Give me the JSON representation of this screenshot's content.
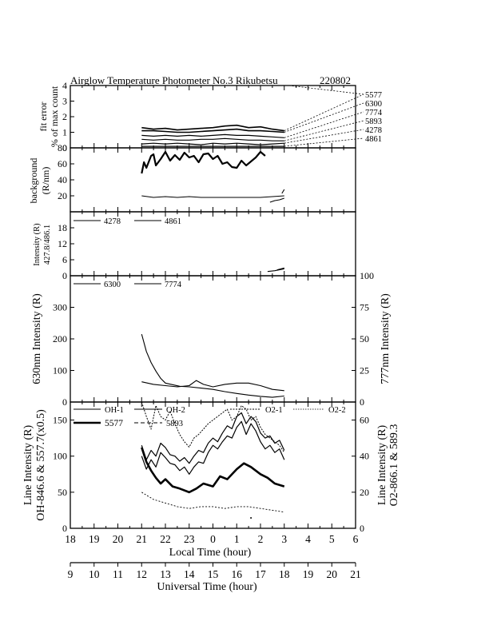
{
  "title": {
    "left": "Airglow Temperature Photometer No.3  Rikubetsu",
    "right": "220802"
  },
  "local_axis": {
    "label": "Local Time (hour)",
    "ticks": [
      "18",
      "19",
      "20",
      "21",
      "22",
      "23",
      "0",
      "1",
      "2",
      "3",
      "4",
      "5",
      "6"
    ]
  },
  "ut_axis": {
    "label": "Universal Time (hour)",
    "ticks": [
      "9",
      "10",
      "11",
      "12",
      "13",
      "14",
      "15",
      "16",
      "17",
      "18",
      "19",
      "20",
      "21"
    ]
  },
  "panel1": {
    "ylabel1": "fit error",
    "ylabel2": "% of max count",
    "yticks": [
      "0",
      "1",
      "2",
      "3",
      "4"
    ],
    "callouts": [
      "5577",
      "6300",
      "7774",
      "5893",
      "4278",
      "4861"
    ]
  },
  "panel2": {
    "ylabel1": "background",
    "ylabel2": "(R/nm)",
    "yticks": [
      "20",
      "40",
      "60",
      "80"
    ]
  },
  "panel3": {
    "ylabel1": "Intensity (R)",
    "ylabel2": "427.8/486.1",
    "yticks": [
      "0",
      "6",
      "12",
      "18"
    ],
    "legend": [
      "4278",
      "4861"
    ]
  },
  "panel4": {
    "ylabel_left": "630nm Intensity (R)",
    "ylabel_right": "777nm Intensity (R)",
    "yticks_left": [
      "0",
      "100",
      "200",
      "300"
    ],
    "yticks_right": [
      "0",
      "25",
      "50",
      "75",
      "100"
    ],
    "legend": [
      "6300",
      "7774"
    ]
  },
  "panel5": {
    "ylabel_left1": "Line Intensity (R)",
    "ylabel_left2": "OH-846.6 & 557.7(x0.5)",
    "ylabel_right1": "Line Intensity (R)",
    "ylabel_right2": "O2-866.1 & 589.3",
    "yticks_left": [
      "0",
      "50",
      "100",
      "150"
    ],
    "yticks_right": [
      "0",
      "20",
      "40",
      "60"
    ],
    "legend": [
      "OH-1",
      "OH-2",
      "O2-1",
      "O2-2",
      "5577",
      "5893"
    ]
  },
  "chart_data": [
    {
      "type": "line",
      "ylabel": "fit error % of max count",
      "xlim": [
        18,
        30
      ],
      "ylim": [
        0,
        4
      ],
      "x_units": "local time (hour)",
      "series": [
        {
          "name": "5577",
          "x": [
            21,
            21.5,
            22,
            22.5,
            23,
            23.5,
            24,
            24.5,
            25,
            25.5,
            26,
            26.5,
            27
          ],
          "values": [
            1.3,
            1.2,
            1.25,
            1.15,
            1.2,
            1.25,
            1.3,
            1.4,
            1.45,
            1.3,
            1.35,
            1.2,
            1.1
          ]
        },
        {
          "name": "6300",
          "x": [
            21,
            21.5,
            22,
            22.5,
            23,
            23.5,
            24,
            24.5,
            25,
            25.5,
            26,
            26.5,
            27
          ],
          "values": [
            1.1,
            1.1,
            1.05,
            1.0,
            1.0,
            1.05,
            1.1,
            1.15,
            1.2,
            1.1,
            1.1,
            1.05,
            1.0
          ]
        },
        {
          "name": "7774",
          "x": [
            21,
            21.5,
            22,
            22.5,
            23,
            23.5,
            24,
            24.5,
            25,
            25.5,
            26,
            26.5,
            27
          ],
          "values": [
            0.8,
            0.75,
            0.8,
            0.75,
            0.8,
            0.75,
            0.8,
            0.85,
            0.8,
            0.8,
            0.75,
            0.7,
            0.65
          ]
        },
        {
          "name": "5893",
          "x": [
            21,
            21.5,
            22,
            22.5,
            23,
            23.5,
            24,
            24.5,
            25,
            25.5,
            26,
            26.5,
            27
          ],
          "values": [
            0.55,
            0.5,
            0.55,
            0.5,
            0.5,
            0.55,
            0.55,
            0.6,
            0.55,
            0.5,
            0.5,
            0.45,
            0.45
          ]
        },
        {
          "name": "4278",
          "x": [
            21,
            21.5,
            22,
            22.5,
            23,
            23.5,
            24,
            24.5,
            25,
            25.5,
            26,
            26.5,
            27
          ],
          "values": [
            0.25,
            0.3,
            0.25,
            0.3,
            0.25,
            0.2,
            0.3,
            0.25,
            0.3,
            0.25,
            0.2,
            0.25,
            0.3
          ]
        },
        {
          "name": "4861",
          "x": [
            21,
            21.5,
            22,
            22.5,
            23,
            23.5,
            24,
            24.5,
            25,
            25.5,
            26,
            26.5,
            27
          ],
          "values": [
            0.1,
            0.1,
            0.1,
            0.1,
            0.1,
            0.1,
            0.1,
            0.1,
            0.1,
            0.1,
            0.1,
            0.1,
            0.1
          ]
        }
      ]
    },
    {
      "type": "line",
      "ylabel": "background (R/nm)",
      "xlim": [
        18,
        30
      ],
      "ylim": [
        0,
        80
      ],
      "series": [
        {
          "x": [
            21,
            21.1,
            21.2,
            21.4,
            21.5,
            21.6,
            21.8,
            22,
            22.2,
            22.4,
            22.6,
            22.8,
            23,
            23.2,
            23.4,
            23.6,
            23.8,
            24,
            24.2,
            24.4,
            24.6,
            24.8,
            25,
            25.2,
            25.4,
            25.6,
            25.8,
            26,
            26.2
          ],
          "values": [
            48,
            62,
            55,
            70,
            72,
            58,
            66,
            75,
            64,
            71,
            65,
            74,
            68,
            70,
            62,
            72,
            73,
            66,
            70,
            60,
            62,
            56,
            55,
            64,
            58,
            63,
            68,
            75,
            70
          ]
        },
        {
          "x": [
            21,
            21.5,
            22,
            22.5,
            23,
            23.5,
            24,
            24.5,
            25,
            25.5,
            26,
            26.5,
            27
          ],
          "values": [
            20,
            18,
            19,
            18,
            19,
            18,
            18,
            18,
            18,
            18,
            18,
            19,
            20
          ]
        },
        {
          "x": [
            26.4,
            26.6,
            26.8,
            27
          ],
          "values": [
            12,
            14,
            15,
            17
          ]
        },
        {
          "x": [
            26.9,
            27
          ],
          "values": [
            23,
            28
          ]
        }
      ]
    },
    {
      "type": "line",
      "ylabel": "Intensity (R) 427.8/486.1",
      "xlim": [
        18,
        30
      ],
      "ylim": [
        0,
        24
      ],
      "series": [
        {
          "name": "4278",
          "x": [
            26.3,
            26.6,
            27
          ],
          "values": [
            1.6,
            1.9,
            2.6
          ]
        },
        {
          "name": "4861",
          "x": [
            26.7,
            27
          ],
          "values": [
            2.2,
            2.9
          ]
        }
      ]
    },
    {
      "type": "line",
      "ylabel": "630nm Intensity (R)",
      "y2label": "777nm Intensity (R)",
      "xlim": [
        18,
        30
      ],
      "ylim": [
        0,
        400
      ],
      "y2lim": [
        0,
        100
      ],
      "series": [
        {
          "name": "6300",
          "axis": "left",
          "x": [
            21,
            21.2,
            21.4,
            21.6,
            21.8,
            22,
            22.3,
            22.6,
            23,
            23.5,
            24,
            24.5,
            25,
            25.5,
            26,
            26.5,
            27
          ],
          "values": [
            215,
            160,
            125,
            98,
            75,
            60,
            55,
            50,
            48,
            44,
            40,
            33,
            27,
            22,
            18,
            15,
            19
          ]
        },
        {
          "name": "7774",
          "axis": "right",
          "x": [
            21,
            21.5,
            22,
            22.5,
            23,
            23.3,
            23.6,
            24,
            24.5,
            25,
            25.5,
            26,
            26.5,
            27
          ],
          "values": [
            16,
            14,
            13,
            12,
            13,
            17,
            14,
            12,
            14,
            15,
            15,
            13,
            10,
            9
          ]
        }
      ]
    },
    {
      "type": "line",
      "ylabel": "Line Intensity (R) OH-846.6 & 557.7(x0.5)",
      "y2label": "Line Intensity (R) O2-866.1 & 589.3",
      "xlim": [
        18,
        30
      ],
      "ylim": [
        0,
        175
      ],
      "y2lim": [
        0,
        70
      ],
      "series": [
        {
          "name": "OH-1",
          "axis": "left",
          "x": [
            21,
            21.2,
            21.4,
            21.6,
            21.8,
            22,
            22.2,
            22.4,
            22.6,
            22.8,
            23,
            23.2,
            23.4,
            23.6,
            23.8,
            24,
            24.2,
            24.4,
            24.6,
            24.8,
            25,
            25.2,
            25.4,
            25.6,
            25.8,
            26,
            26.2,
            26.4,
            26.6,
            26.8,
            27
          ],
          "values": [
            100,
            82,
            95,
            85,
            105,
            98,
            90,
            88,
            80,
            85,
            75,
            85,
            92,
            90,
            105,
            115,
            110,
            120,
            128,
            125,
            140,
            148,
            130,
            145,
            135,
            120,
            110,
            115,
            105,
            110,
            95
          ]
        },
        {
          "name": "OH-2",
          "axis": "left",
          "x": [
            21,
            21.2,
            21.4,
            21.6,
            21.8,
            22,
            22.2,
            22.4,
            22.6,
            22.8,
            23,
            23.2,
            23.4,
            23.6,
            23.8,
            24,
            24.2,
            24.4,
            24.6,
            24.8,
            25,
            25.2,
            25.4,
            25.6,
            25.8,
            26,
            26.2,
            26.4,
            26.6,
            26.8,
            27
          ],
          "values": [
            115,
            95,
            108,
            100,
            118,
            112,
            102,
            100,
            93,
            98,
            90,
            100,
            108,
            105,
            118,
            125,
            120,
            132,
            142,
            138,
            155,
            160,
            145,
            155,
            148,
            132,
            125,
            128,
            118,
            122,
            108
          ]
        },
        {
          "name": "5577",
          "axis": "left",
          "x": [
            21,
            21.2,
            21.4,
            21.6,
            21.8,
            22,
            22.3,
            22.6,
            23,
            23.3,
            23.6,
            24,
            24.3,
            24.6,
            25,
            25.3,
            25.6,
            26,
            26.3,
            26.6,
            27
          ],
          "values": [
            112,
            92,
            80,
            70,
            62,
            68,
            58,
            55,
            50,
            55,
            62,
            58,
            72,
            68,
            82,
            90,
            85,
            75,
            70,
            62,
            58
          ]
        },
        {
          "name": "O2-1",
          "axis": "right",
          "x": [
            21,
            21.2,
            21.4,
            21.6,
            21.8,
            22,
            22.2,
            22.4,
            22.6,
            22.8,
            23,
            23.2,
            23.4,
            23.6,
            23.8,
            24,
            24.2,
            24.4,
            24.6,
            24.8,
            25,
            25.2,
            25.4,
            25.6,
            25.8,
            26,
            26.2,
            26.4,
            26.6,
            26.8,
            27
          ],
          "values": [
            70,
            62,
            55,
            68,
            62,
            60,
            65,
            58,
            52,
            48,
            45,
            50,
            52,
            55,
            58,
            60,
            62,
            64,
            66,
            60,
            62,
            68,
            66,
            60,
            62,
            56,
            52,
            50,
            48,
            46,
            42
          ]
        },
        {
          "name": "5893",
          "axis": "right",
          "x": [
            21,
            21.5,
            22,
            22.5,
            23,
            23.5,
            24,
            24.5,
            25,
            25.5,
            26,
            26.5,
            27
          ],
          "values": [
            20,
            16,
            14,
            12,
            11,
            12,
            12,
            11,
            12,
            12,
            11,
            10,
            9
          ]
        }
      ]
    }
  ]
}
